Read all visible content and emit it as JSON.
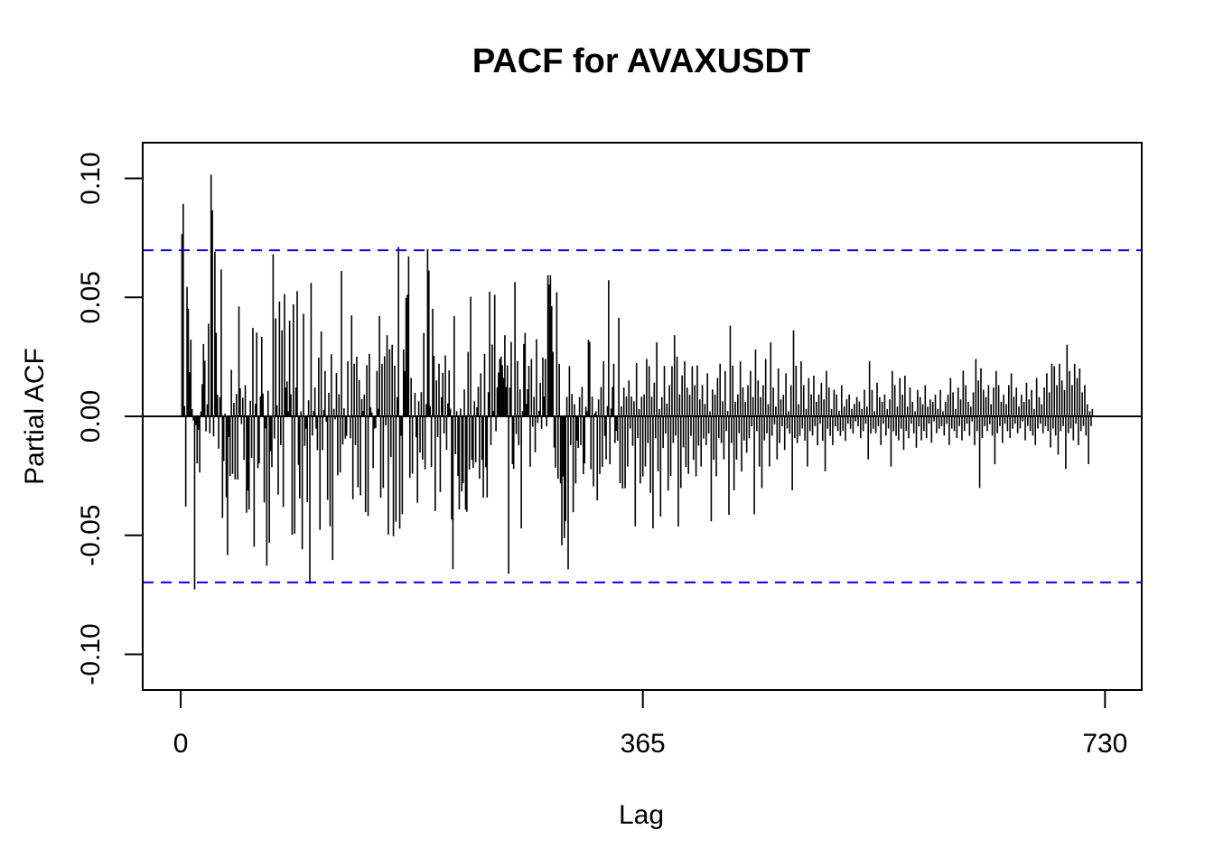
{
  "chart_data": {
    "type": "bar",
    "title": "PACF for AVAXUSDT",
    "xlabel": "Lag",
    "ylabel": "Partial ACF",
    "xlim": [
      -30,
      759
    ],
    "ylim": [
      -0.115,
      0.115
    ],
    "x_ticks": [
      0,
      365,
      730
    ],
    "x_tick_labels": [
      "0",
      "365",
      "730"
    ],
    "y_ticks": [
      -0.1,
      -0.05,
      0.0,
      0.05,
      0.1
    ],
    "y_tick_labels": [
      "-0.10",
      "-0.05",
      "0.00",
      "0.05",
      "0.10"
    ],
    "confidence_bound": 0.0698,
    "bound_color": "#0000ff",
    "bar_color": "#000000",
    "grid": false,
    "legend": "none",
    "series": [
      {
        "lags_from": 1,
        "values": [
          0.0766,
          0.0893,
          0.0043,
          -0.0379,
          0.0544,
          0.0452,
          0.0186,
          0.0322,
          0.0031,
          -0.0018,
          -0.0728,
          -0.0037,
          -0.0198,
          -0.0056,
          -0.0236,
          0.0021,
          0.0135,
          0.0304,
          0.0234,
          -0.0063,
          0.0051,
          0.0389,
          -0.0071,
          0.1015,
          0.0866,
          -0.0084,
          0.0692,
          0.0351,
          0.0091,
          -0.0136,
          0.0081,
          0.0617,
          -0.0427,
          -0.0188,
          0.0012,
          -0.0341,
          -0.0583,
          -0.0087,
          -0.0251,
          0.0196,
          -0.0242,
          0.0057,
          -0.0265,
          0.0094,
          -0.0266,
          0.0462,
          0.0118,
          -0.0032,
          0.0078,
          -0.0183,
          0.0131,
          -0.0405,
          -0.0312,
          -0.0392,
          0.0065,
          -0.0174,
          0.0372,
          -0.0548,
          0.0053,
          0.0352,
          -0.0218,
          -0.0198,
          0.0084,
          0.0334,
          0.0096,
          -0.0362,
          -0.0051,
          -0.0627,
          0.0108,
          -0.0531,
          -0.0147,
          -0.0214,
          0.0681,
          -0.0093,
          0.0412,
          0.0046,
          -0.0329,
          0.0483,
          -0.0121,
          0.0362,
          -0.0381,
          0.0514,
          0.0121,
          0.0147,
          0.0021,
          0.0402,
          0.0093,
          -0.0498,
          0.0471,
          -0.0493,
          0.0121,
          0.0526,
          -0.0204,
          -0.0345,
          0.0021,
          -0.0559,
          0.0431,
          -0.0124,
          -0.0052,
          -0.0361,
          0.0068,
          -0.0703,
          0.0561,
          -0.0081,
          0.0023,
          0.0121,
          -0.0052,
          -0.0142,
          0.0247,
          -0.0477,
          0.0357,
          -0.0142,
          0.0027,
          0.0191,
          -0.0023,
          -0.0351,
          0.0099,
          -0.0462,
          0.0261,
          -0.0604,
          0.0032,
          -0.0013,
          0.0182,
          -0.0248,
          0.0093,
          -0.0236,
          0.0611,
          -0.0118,
          0.0034,
          -0.0094,
          -0.0082,
          0.0231,
          0.0003,
          -0.0092,
          0.0424,
          -0.0348,
          0.0221,
          -0.0121,
          0.0251,
          -0.0298,
          0.0152,
          -0.0332,
          0.0072,
          0.0023,
          0.0092,
          -0.0403,
          0.0215,
          -0.0419,
          0.0263,
          0.0038,
          0.0017,
          -0.0218,
          -0.0052,
          -0.0049,
          0.0191,
          0.0032,
          0.0422,
          -0.0342,
          0.0221,
          -0.0301,
          0.0253,
          -0.0038,
          0.0341,
          -0.0497,
          0.0282,
          -0.0171,
          0.0301,
          -0.0504,
          0.0213,
          -0.0443,
          0.0081,
          0.0712,
          -0.0472,
          -0.0082,
          -0.0411,
          0.0281,
          0.0191,
          0.0498,
          0.0511,
          0.0672,
          -0.0258,
          0.0161,
          -0.0241,
          0.0004,
          0.0099,
          -0.0088,
          -0.0363,
          0.0063,
          -0.0152,
          0.0102,
          -0.0182,
          0.0351,
          -0.0223,
          0.0051,
          0.0703,
          0.0613,
          0.0043,
          -0.0213,
          0.0452,
          0.0254,
          -0.0398,
          0.0151,
          -0.0087,
          0.0221,
          -0.0318,
          0.0081,
          0.0183,
          -0.0072,
          0.0256,
          -0.0141,
          0.0054,
          0.0193,
          0.0032,
          -0.0434,
          -0.0642,
          0.0421,
          -0.0159,
          0.0022,
          -0.0251,
          -0.0391,
          0.0033,
          -0.0315,
          -0.0281,
          0.0113,
          -0.0392,
          -0.0401,
          0.0271,
          -0.0223,
          0.0503,
          -0.0183,
          -0.0217,
          0.0063,
          -0.0193,
          0.0038,
          0.0124,
          -0.0262,
          0.0181,
          -0.0183,
          -0.0342,
          0.0263,
          -0.0214,
          -0.0341,
          0.0102,
          0.0524,
          -0.0121,
          0.0302,
          0.0023,
          0.0511,
          -0.0063,
          0.0122,
          0.0184,
          0.0241,
          0.0251,
          0.0215,
          0.0162,
          0.0341,
          0.0123,
          0.0214,
          -0.0662,
          0.0121,
          0.0313,
          -0.0201,
          -0.0221,
          0.0564,
          -0.0074,
          0.0232,
          -0.0121,
          0.0113,
          -0.0471,
          0.0022,
          0.0304,
          0.0351,
          0.0052,
          0.0114,
          0.0212,
          -0.0212,
          0.0241,
          -0.0044,
          0.0082,
          -0.0151,
          0.0324,
          -0.0028,
          0.0023,
          0.0141,
          -0.0053,
          0.0247,
          0.0084,
          0.0241,
          -0.0042,
          0.0593,
          0.0554,
          0.0593,
          0.0463,
          0.0271,
          -0.0132,
          -0.0216,
          0.0522,
          -0.0262,
          0.0221,
          -0.0282,
          -0.0542,
          -0.0253,
          -0.0512,
          -0.0441,
          0.0082,
          -0.0643,
          0.0211,
          -0.0121,
          0.0094,
          -0.0403,
          0.0051,
          -0.0282,
          -0.0102,
          -0.0133,
          0.0081,
          -0.0121,
          0.0124,
          -0.0243,
          -0.0198,
          0.0041,
          0.0021,
          0.0322,
          0.0313,
          -0.0222,
          0.0083,
          -0.0294,
          0.0012,
          0.0021,
          -0.0353,
          0.0071,
          -0.0242,
          0.0123,
          -0.0212,
          0.0232,
          -0.0082,
          -0.0181,
          0.0043,
          0.0572,
          -0.0201,
          0.0033,
          0.0124,
          0.0221,
          -0.0112,
          -0.0062,
          -0.0102,
          0.0414,
          -0.0281,
          0.0042,
          -0.0303,
          0.0121,
          -0.0302,
          0.0084,
          -0.0211,
          0.0151,
          -0.0051,
          0.0083,
          -0.0124,
          0.0063,
          -0.0462,
          0.0224,
          -0.0092,
          0.0031,
          -0.0282,
          0.0082,
          -0.0253,
          0.0092,
          -0.0211,
          0.0241,
          -0.0112,
          0.0211,
          -0.0322,
          0.0082,
          -0.0471,
          0.0142,
          -0.0092,
          0.0311,
          -0.0231,
          0.0031,
          -0.0421,
          0.0081,
          -0.0133,
          0.0212,
          -0.0072,
          0.0053,
          -0.0312,
          0.0131,
          -0.0251,
          0.0211,
          -0.0112,
          0.0341,
          -0.0081,
          0.0251,
          -0.0463,
          0.0092,
          -0.0301,
          0.0172,
          -0.0131,
          0.0231,
          -0.0213,
          0.0121,
          -0.0242,
          0.0091,
          -0.0082,
          0.0211,
          -0.0183,
          0.0131,
          -0.0252,
          0.0214,
          -0.0123,
          0.0071,
          -0.0211,
          0.0131,
          -0.0093,
          0.0052,
          -0.0121,
          0.0181,
          -0.0072,
          0.0021,
          -0.0441,
          0.0113,
          -0.0183,
          0.0091,
          -0.0252,
          0.0161,
          -0.0091,
          0.0221,
          -0.0112,
          0.0063,
          -0.0181,
          0.0191,
          -0.0062,
          0.0022,
          -0.0414,
          0.0381,
          -0.0112,
          0.0213,
          -0.0311,
          0.0061,
          -0.0182,
          0.0092,
          -0.0071,
          0.0231,
          -0.0232,
          0.0122,
          -0.0101,
          0.0061,
          -0.0153,
          0.0131,
          -0.0092,
          0.0191,
          -0.0042,
          0.0081,
          -0.0411,
          0.0281,
          -0.0062,
          0.0151,
          -0.0211,
          0.0081,
          -0.0302,
          0.0131,
          -0.0101,
          0.0241,
          -0.0071,
          0.0051,
          -0.0211,
          0.0311,
          -0.0082,
          0.0121,
          -0.0033,
          0.0041,
          -0.0181,
          0.0202,
          -0.0112,
          0.0071,
          -0.0042,
          0.0091,
          -0.0141,
          0.0181,
          -0.0051,
          0.0021,
          -0.0073,
          0.0131,
          -0.0311,
          0.0362,
          -0.0091,
          0.0213,
          -0.0112,
          0.0051,
          -0.0082,
          0.0231,
          -0.0051,
          0.0131,
          -0.0102,
          0.0031,
          -0.0211,
          0.0161,
          -0.0062,
          0.0092,
          -0.0081,
          0.0171,
          -0.0041,
          0.0061,
          -0.0122,
          0.0092,
          -0.0031,
          0.0141,
          -0.0103,
          0.0071,
          -0.0231,
          0.0191,
          -0.0052,
          0.0121,
          -0.0082,
          0.0031,
          -0.0121,
          0.0112,
          -0.0042,
          0.0092,
          -0.0061,
          0.0023,
          -0.0082,
          0.0131,
          -0.0061,
          0.0041,
          -0.0103,
          0.0072,
          -0.0031,
          0.0092,
          -0.0052,
          0.0031,
          -0.0072,
          0.0052,
          -0.0021,
          0.0081,
          -0.0041,
          0.0062,
          -0.0091,
          0.0031,
          -0.0062,
          0.0112,
          -0.0031,
          0.0041,
          -0.0181,
          0.0231,
          -0.0072,
          0.0111,
          -0.0052,
          0.0021,
          -0.0071,
          0.0141,
          -0.0042,
          0.0081,
          -0.0121,
          0.0061,
          -0.0031,
          0.0092,
          -0.0081,
          0.0031,
          -0.0051,
          0.0071,
          -0.0211,
          0.0191,
          -0.0063,
          0.0131,
          -0.0082,
          0.0041,
          -0.0101,
          0.0161,
          -0.0052,
          0.0091,
          -0.0141,
          0.0171,
          -0.0061,
          0.0041,
          -0.0092,
          0.0121,
          -0.0031,
          0.0061,
          -0.0072,
          0.0021,
          -0.0132,
          0.0111,
          -0.0042,
          0.0081,
          -0.0101,
          0.0051,
          -0.0061,
          0.0131,
          -0.0092,
          0.0041,
          -0.0031,
          0.0071,
          -0.0111,
          0.0061,
          -0.0021,
          0.0091,
          -0.0071,
          0.0031,
          -0.0052,
          0.0111,
          -0.0041,
          0.0021,
          -0.0081,
          0.0061,
          -0.0032,
          0.0091,
          -0.0121,
          0.0161,
          -0.0051,
          0.0101,
          -0.0062,
          0.0031,
          -0.0091,
          0.0121,
          -0.0041,
          0.0071,
          -0.0101,
          0.0192,
          -0.0061,
          0.0131,
          -0.0031,
          0.0061,
          -0.0082,
          0.0041,
          -0.0021,
          0.0101,
          -0.0121,
          0.0241,
          -0.0062,
          0.0151,
          -0.0301,
          0.0202,
          -0.0091,
          0.0112,
          -0.0041,
          0.0081,
          -0.0061,
          0.0131,
          -0.0033,
          0.0051,
          -0.0081,
          0.0121,
          -0.0201,
          0.0191,
          -0.0071,
          0.0131,
          -0.0041,
          0.0061,
          -0.0112,
          0.0091,
          -0.0031,
          0.0051,
          -0.0062,
          0.0131,
          -0.0091,
          0.0181,
          -0.0052,
          0.0082,
          -0.0031,
          0.0121,
          -0.0071,
          0.0041,
          -0.0051,
          0.0091,
          -0.0021,
          0.0061,
          -0.0101,
          0.0141,
          -0.0041,
          0.0071,
          -0.0061,
          0.0111,
          -0.0081,
          0.0031,
          -0.0121,
          0.0161,
          -0.0051,
          0.0081,
          -0.0031,
          0.0051,
          -0.0071,
          0.0121,
          -0.0041,
          0.0181,
          -0.0062,
          0.0101,
          -0.0131,
          0.0221,
          -0.0051,
          0.0211,
          -0.0081,
          0.0131,
          -0.0161,
          0.0221,
          -0.0062,
          0.0151,
          -0.0041,
          0.0111,
          -0.0221,
          0.0301,
          -0.0071,
          0.0191,
          -0.0051,
          0.0131,
          -0.0101,
          0.0221,
          -0.0031,
          0.0161,
          -0.0121,
          0.0201,
          -0.0062,
          0.0101,
          -0.0041,
          0.0131,
          -0.0081,
          0.0051,
          -0.0201,
          0.0021,
          -0.0041,
          0.0031
        ]
      }
    ]
  }
}
